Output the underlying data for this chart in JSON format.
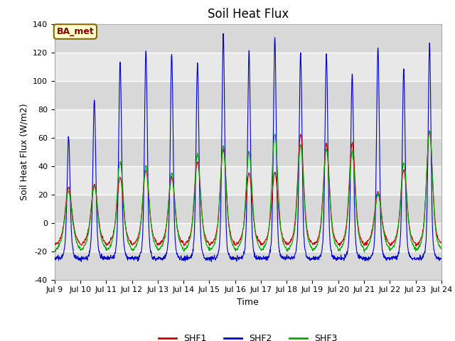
{
  "title": "Soil Heat Flux",
  "ylabel": "Soil Heat Flux (W/m2)",
  "xlabel": "Time",
  "xlim": [
    0,
    360
  ],
  "ylim": [
    -40,
    140
  ],
  "yticks": [
    -40,
    -20,
    0,
    20,
    40,
    60,
    80,
    100,
    120,
    140
  ],
  "xtick_positions": [
    0,
    24,
    48,
    72,
    96,
    120,
    144,
    168,
    192,
    216,
    240,
    264,
    288,
    312,
    336,
    360
  ],
  "xtick_labels": [
    "Jul 9",
    "Jul 10",
    "Jul 11",
    "Jul 12",
    "Jul 13",
    "Jul 14",
    "Jul 15",
    "Jul 16",
    "Jul 17",
    "Jul 18",
    "Jul 19",
    "Jul 20",
    "Jul 21",
    "Jul 22",
    "Jul 23",
    "Jul 24"
  ],
  "legend_labels": [
    "SHF1",
    "SHF2",
    "SHF3"
  ],
  "legend_colors": [
    "#cc0000",
    "#0000cc",
    "#00aa00"
  ],
  "bg_color_light": "#e8e8e8",
  "bg_color_dark": "#d0d0d0",
  "annotation_text": "BA_met",
  "annotation_bg": "#ffffcc",
  "annotation_border": "#886600",
  "annotation_text_color": "#880000",
  "grid_color": "white",
  "title_fontsize": 12,
  "label_fontsize": 9,
  "tick_fontsize": 8
}
